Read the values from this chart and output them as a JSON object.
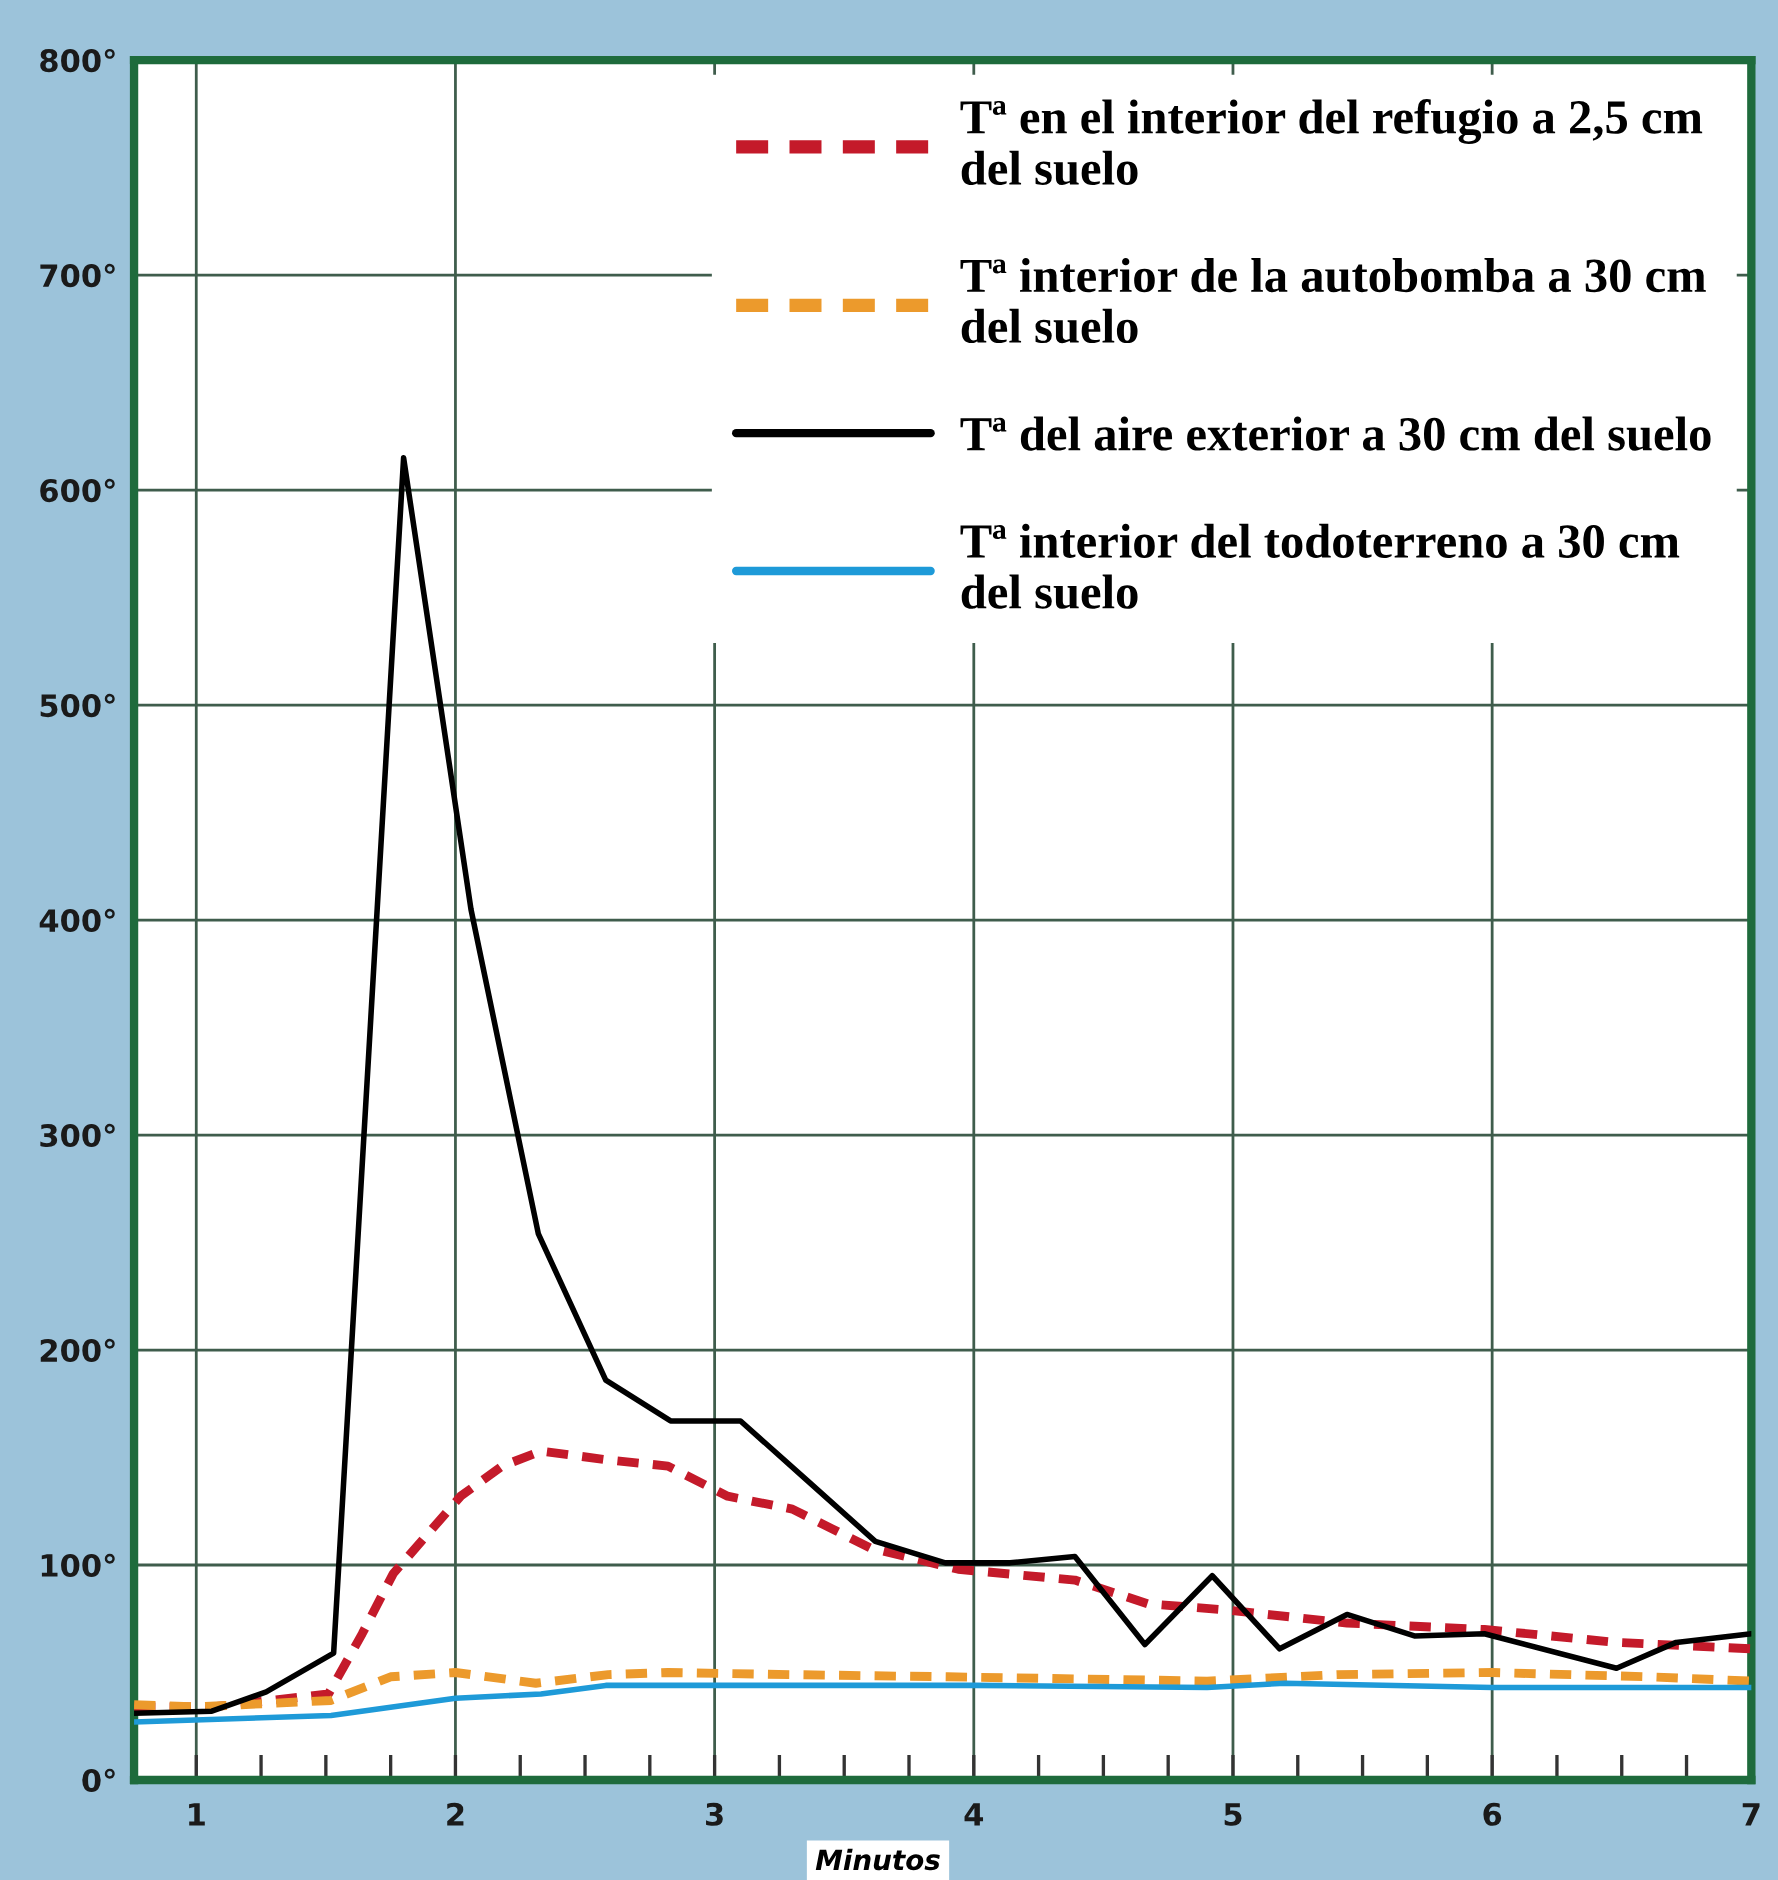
{
  "chart_data": {
    "type": "line",
    "xlabel": "Minutos",
    "xlim": [
      0.76,
      7
    ],
    "xticks": [
      1,
      {
        "value": 1.25,
        "label": null
      },
      {
        "value": 1.5,
        "label": null
      },
      {
        "value": 1.75,
        "label": null
      },
      2,
      {
        "value": 2.25,
        "label": null
      },
      {
        "value": 2.5,
        "label": null
      },
      {
        "value": 2.75,
        "label": null
      },
      3,
      {
        "value": 3.25,
        "label": null
      },
      {
        "value": 3.5,
        "label": null
      },
      {
        "value": 3.75,
        "label": null
      },
      4,
      {
        "value": 4.25,
        "label": null
      },
      {
        "value": 4.5,
        "label": null
      },
      {
        "value": 4.75,
        "label": null
      },
      5,
      {
        "value": 5.25,
        "label": null
      },
      {
        "value": 5.5,
        "label": null
      },
      {
        "value": 5.75,
        "label": null
      },
      6,
      {
        "value": 6.25,
        "label": null
      },
      {
        "value": 6.5,
        "label": null
      },
      {
        "value": 6.75,
        "label": null
      },
      7
    ],
    "ylim": [
      0,
      800
    ],
    "yticks": [
      {
        "value": 0,
        "label": "0°"
      },
      {
        "value": 100,
        "label": "100°"
      },
      {
        "value": 200,
        "label": "200°"
      },
      {
        "value": 300,
        "label": "300°"
      },
      {
        "value": 400,
        "label": "400°"
      },
      {
        "value": 500,
        "label": "500°"
      },
      {
        "value": 600,
        "label": "600°"
      },
      {
        "value": 700,
        "label": "700°"
      },
      {
        "value": 800,
        "label": "800°"
      }
    ],
    "grid": true,
    "legend": "top right",
    "series": [
      {
        "name": "Tª en el interior del refugio a 2,5 cm\ndel suelo",
        "color": "#c41a2a",
        "line_style": "dashed",
        "x": [
          0.76,
          1.06,
          1.29,
          1.51,
          1.64,
          1.76,
          2.02,
          2.18,
          2.33,
          2.58,
          2.82,
          3.05,
          3.3,
          3.6,
          3.94,
          4.39,
          4.67,
          4.98,
          5.44,
          5.97,
          6.48,
          7.0
        ],
        "values": [
          34,
          34,
          37,
          40,
          68,
          96,
          132,
          146,
          153,
          149,
          146,
          132,
          126,
          108,
          98,
          93,
          82,
          79,
          73,
          70,
          64,
          61
        ]
      },
      {
        "name": "Tª interior de la autobomba a 30 cm\ndel suelo",
        "color": "#ec9a2c",
        "line_style": "dashed",
        "x": [
          0.76,
          1.0,
          1.52,
          1.75,
          2.0,
          2.31,
          2.59,
          2.82,
          3.3,
          3.9,
          4.9,
          5.4,
          6.0,
          6.6,
          7.0
        ],
        "values": [
          35,
          34,
          37,
          48,
          50,
          45,
          49,
          50,
          49,
          48,
          46,
          49,
          50,
          48,
          46
        ]
      },
      {
        "name": "Tª del aire exterior a 30 cm del suelo",
        "color": "#000000",
        "line_style": "solid",
        "x": [
          0.76,
          1.06,
          1.27,
          1.53,
          1.8,
          2.06,
          2.32,
          2.58,
          2.83,
          3.1,
          3.36,
          3.62,
          3.89,
          4.14,
          4.39,
          4.66,
          4.92,
          5.18,
          5.44,
          5.7,
          5.97,
          6.48,
          6.71,
          7.0
        ],
        "values": [
          31,
          32,
          41,
          59,
          615,
          405,
          254,
          186,
          167,
          167,
          139,
          111,
          101,
          101,
          104,
          63,
          95,
          61,
          77,
          67,
          68,
          52,
          64,
          68
        ]
      },
      {
        "name": "Tª interior del todoterreno a 30 cm\ndel suelo",
        "color": "#1e9ad8",
        "line_style": "solid",
        "x": [
          0.76,
          1.52,
          2.0,
          2.33,
          2.58,
          3.3,
          4.0,
          4.9,
          5.2,
          6.0,
          7.0
        ],
        "values": [
          27,
          30,
          38,
          40,
          44,
          44,
          44,
          43,
          45,
          43,
          43
        ]
      }
    ]
  }
}
